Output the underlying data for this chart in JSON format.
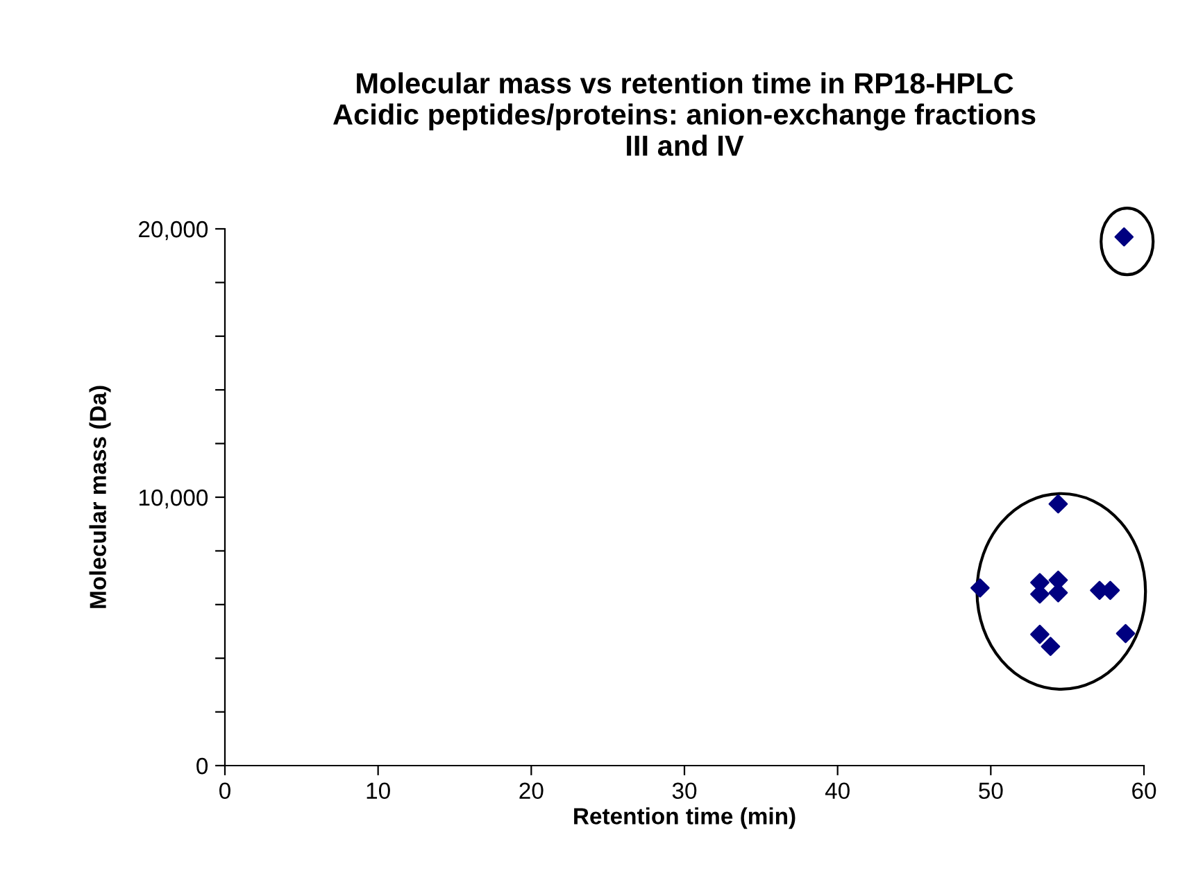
{
  "chart_data": {
    "type": "scatter",
    "title": "Molecular mass vs retention time in RP18-HPLC\nAcidic peptides/proteins: anion-exchange fractions\nIII and IV",
    "xlabel": "Retention time (min)",
    "ylabel": "Molecular mass (Da)",
    "x": [
      58.7,
      54.4,
      49.3,
      53.2,
      54.4,
      53.2,
      54.4,
      57.1,
      57.8,
      53.2,
      53.9,
      58.8
    ],
    "values": [
      19700,
      9750,
      6620,
      6820,
      6910,
      6390,
      6440,
      6530,
      6530,
      4890,
      4440,
      4920
    ],
    "color": "#000080",
    "marker": "diamond",
    "xlim": [
      0,
      60
    ],
    "xticks": [
      0,
      10,
      20,
      30,
      40,
      50,
      60
    ],
    "ylim": [
      0,
      20000
    ],
    "yticks": [
      {
        "value": 0,
        "label": "0"
      },
      {
        "value": 2000,
        "label": null
      },
      {
        "value": 4000,
        "label": null
      },
      {
        "value": 6000,
        "label": null
      },
      {
        "value": 8000,
        "label": null
      },
      {
        "value": 10000,
        "label": "10,000"
      },
      {
        "value": 12000,
        "label": null
      },
      {
        "value": 14000,
        "label": null
      },
      {
        "value": 16000,
        "label": null
      },
      {
        "value": 18000,
        "label": null
      },
      {
        "value": 20000,
        "label": "20,000"
      }
    ],
    "grid": false,
    "legend": false
  }
}
